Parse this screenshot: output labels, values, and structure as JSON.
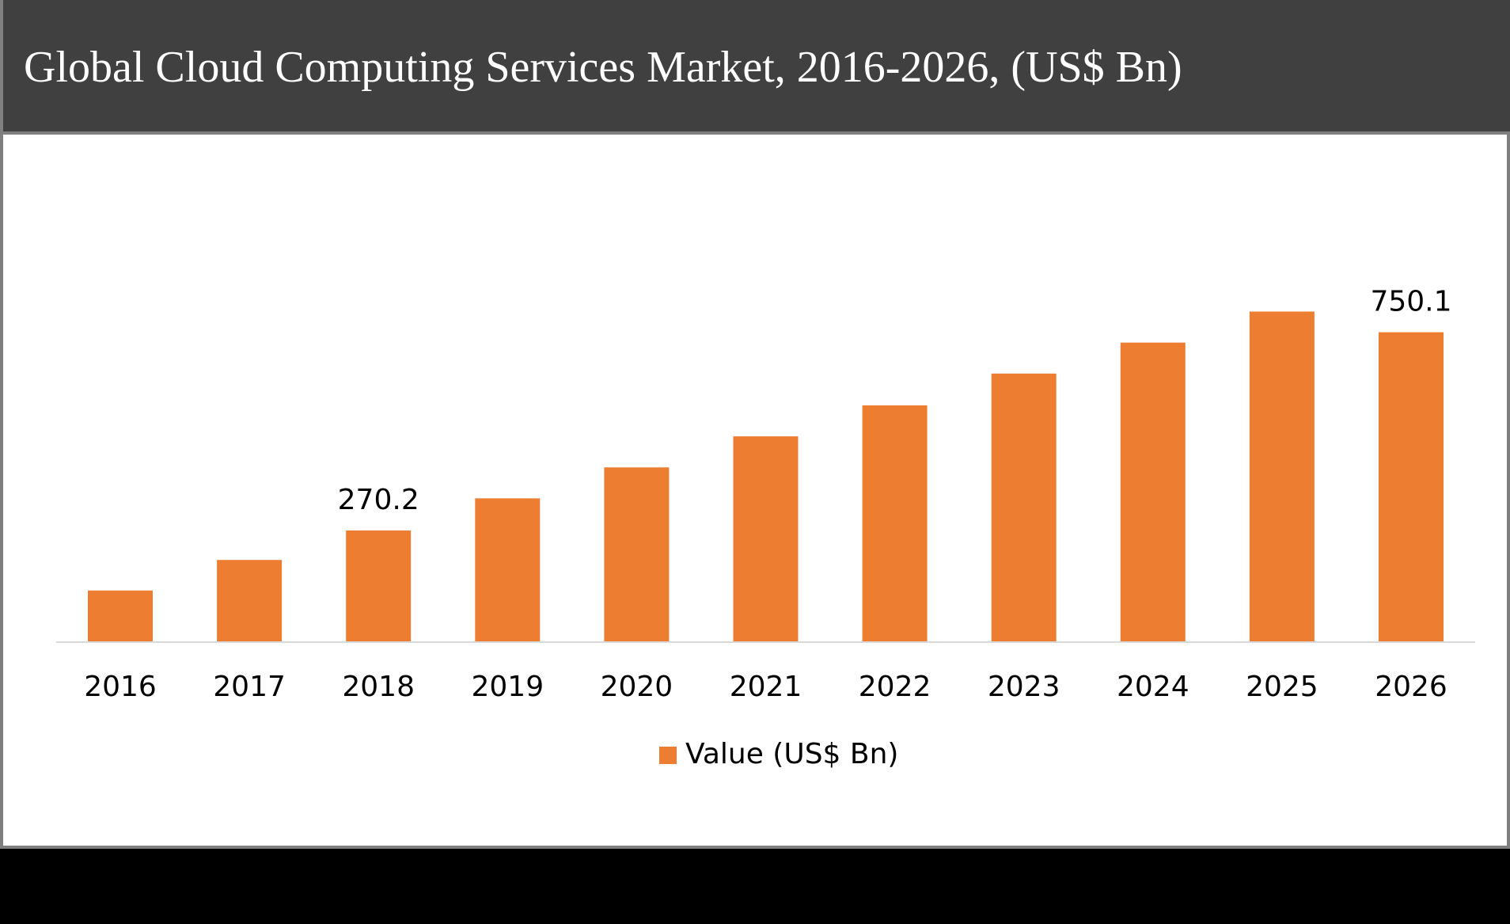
{
  "colors": {
    "bar": "#ED7D31",
    "header_bg": "#404040",
    "axis": "#d9d9d9"
  },
  "chart_data": {
    "type": "bar",
    "title": "Global Cloud Computing Services Market, 2016-2026, (US$ Bn)",
    "categories": [
      "2016",
      "2017",
      "2018",
      "2019",
      "2020",
      "2021",
      "2022",
      "2023",
      "2024",
      "2025",
      "2026"
    ],
    "series": [
      {
        "name": "Value (US$ Bn)",
        "values": [
          125,
          199,
          270.2,
          348,
          423,
          498,
          573,
          650,
          725,
          800,
          750.1
        ]
      }
    ],
    "data_labels": [
      {
        "category": "2018",
        "text": "270.2"
      },
      {
        "category": "2026",
        "text": "750.1"
      }
    ],
    "legend_position": "bottom-center",
    "grid": false
  }
}
